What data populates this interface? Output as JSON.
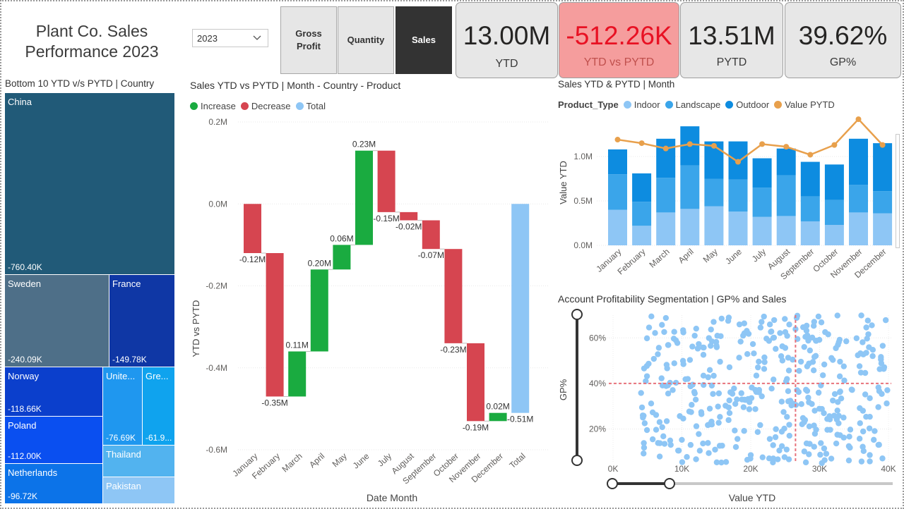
{
  "report": {
    "title_line1": "Plant Co. Sales",
    "title_line2": "Performance 2023"
  },
  "year_slicer": {
    "selected": "2023"
  },
  "measure_buttons": [
    {
      "label": "Gross Profit",
      "active": false
    },
    {
      "label": "Quantity",
      "active": false
    },
    {
      "label": "Sales",
      "active": true
    }
  ],
  "kpis": [
    {
      "value": "13.00M",
      "label": "YTD"
    },
    {
      "value": "-512.26K",
      "label": "YTD vs PYTD"
    },
    {
      "value": "13.51M",
      "label": "PYTD"
    },
    {
      "value": "39.62%",
      "label": "GP%"
    }
  ],
  "colors": {
    "increase": "#1aab40",
    "decrease": "#d64550",
    "total": "#8ec6f5",
    "indoor": "#8ec6f5",
    "landscape": "#3aa5ea",
    "outdoor": "#0d8ce0",
    "pytd_line": "#e8a04c",
    "scatter": "#8ec6f5",
    "avg_line": "#e8737c",
    "china": "#215a78",
    "sweden": "#4e6f88",
    "france": "#0f37a5",
    "norway": "#0b3fcc",
    "poland": "#0a4ff0",
    "netherlands": "#0c73e8",
    "united": "#1f97ef",
    "greece": "#0fa3ee",
    "thailand": "#52b3ef",
    "pakistan": "#8ec6f5"
  },
  "treemap": {
    "title": "Bottom 10 YTD v/s PYTD | Country",
    "items": [
      {
        "name": "China",
        "value": "-760.40K"
      },
      {
        "name": "Sweden",
        "value": "-240.09K"
      },
      {
        "name": "France",
        "value": "-149.78K"
      },
      {
        "name": "Norway",
        "value": "-118.66K"
      },
      {
        "name": "Poland",
        "value": "-112.00K"
      },
      {
        "name": "Netherlands",
        "value": "-96.72K"
      },
      {
        "name": "Unite...",
        "value": "-76.69K"
      },
      {
        "name": "Gre...",
        "value": "-61.9..."
      },
      {
        "name": "Thailand",
        "value": ""
      },
      {
        "name": "Pakistan",
        "value": ""
      }
    ]
  },
  "waterfall": {
    "title": "Sales YTD vs PYTD | Month - Country - Product",
    "legend": [
      "Increase",
      "Decrease",
      "Total"
    ],
    "ylabel": "YTD vs PYTD",
    "xlabel": "Date Month",
    "ytick_labels": [
      "0.2M",
      "0.0M",
      "-0.2M",
      "-0.4M",
      "-0.6M"
    ]
  },
  "combo": {
    "title": "Sales YTD & PYTD | Month",
    "legend_title": "Product_Type",
    "legend": [
      "Indoor",
      "Landscape",
      "Outdoor",
      "Value PYTD"
    ],
    "ylabel": "Value YTD",
    "ytick_labels": [
      "1.0M",
      "0.5M",
      "0.0M"
    ]
  },
  "scatter": {
    "title": "Account Profitability Segmentation | GP% and Sales",
    "ylabel": "GP%",
    "xlabel": "Value YTD",
    "ytick_labels": [
      "60%",
      "40%",
      "20%"
    ],
    "xtick_labels": [
      "0K",
      "10K",
      "20K",
      "30K",
      "40K"
    ]
  },
  "chart_data": [
    {
      "type": "bar",
      "subtype": "waterfall",
      "title": "Sales YTD vs PYTD | Month - Country - Product",
      "xlabel": "Date Month",
      "ylabel": "YTD vs PYTD",
      "categories": [
        "January",
        "February",
        "March",
        "April",
        "May",
        "June",
        "July",
        "August",
        "September",
        "October",
        "November",
        "December",
        "Total"
      ],
      "values": [
        -0.12,
        -0.35,
        0.11,
        0.2,
        0.06,
        0.23,
        -0.15,
        -0.02,
        -0.07,
        -0.23,
        -0.19,
        0.02,
        -0.51
      ],
      "data_labels": [
        "-0.12M",
        "-0.35M",
        "0.11M",
        "0.20M",
        "0.06M",
        "0.23M",
        "-0.15M",
        "-0.02M",
        "-0.07M",
        "-0.23M",
        "-0.19M",
        "0.02M",
        "-0.51M"
      ],
      "unit": "M",
      "ylim": [
        -0.6,
        0.2
      ]
    },
    {
      "type": "bar",
      "subtype": "stacked_bar_with_line",
      "title": "Sales YTD & PYTD | Month",
      "ylabel": "Value YTD",
      "categories": [
        "January",
        "February",
        "March",
        "April",
        "May",
        "June",
        "July",
        "August",
        "September",
        "October",
        "November",
        "December"
      ],
      "series": [
        {
          "name": "Indoor",
          "values": [
            0.4,
            0.22,
            0.37,
            0.41,
            0.44,
            0.38,
            0.32,
            0.33,
            0.27,
            0.23,
            0.37,
            0.36
          ]
        },
        {
          "name": "Landscape",
          "values": [
            0.4,
            0.27,
            0.39,
            0.49,
            0.31,
            0.36,
            0.33,
            0.46,
            0.28,
            0.28,
            0.31,
            0.25
          ]
        },
        {
          "name": "Outdoor",
          "values": [
            0.28,
            0.32,
            0.44,
            0.44,
            0.42,
            0.43,
            0.33,
            0.3,
            0.39,
            0.4,
            0.52,
            0.54
          ]
        },
        {
          "name": "Value PYTD",
          "type": "line",
          "values": [
            1.19,
            1.15,
            1.09,
            1.14,
            1.12,
            0.94,
            1.14,
            1.11,
            1.02,
            1.13,
            1.42,
            1.13
          ]
        }
      ],
      "ylim": [
        0,
        1.45
      ]
    },
    {
      "type": "scatter",
      "title": "Account Profitability Segmentation | GP% and Sales",
      "xlabel": "Value YTD",
      "ylabel": "GP%",
      "xlim": [
        0,
        40
      ],
      "ylim": [
        5,
        70
      ],
      "x_unit": "K",
      "y_unit": "%",
      "average_lines": {
        "x": 26.5,
        "y": 40
      },
      "point_count": 400,
      "x_range_of_points": [
        4,
        40
      ],
      "y_range_of_points": [
        5,
        70
      ]
    }
  ]
}
